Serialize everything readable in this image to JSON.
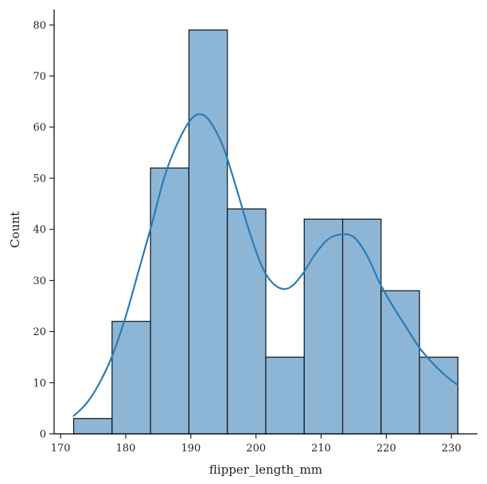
{
  "chart_data": {
    "type": "bar",
    "subtype": "histogram_with_kde",
    "xlabel": "flipper_length_mm",
    "ylabel": "Count",
    "xlim": [
      169,
      234
    ],
    "ylim": [
      0,
      83
    ],
    "xticks": [
      170,
      180,
      190,
      200,
      210,
      220,
      230
    ],
    "yticks": [
      0,
      10,
      20,
      30,
      40,
      50,
      60,
      70,
      80
    ],
    "bins": [
      {
        "x0": 172.0,
        "x1": 177.9,
        "count": 3
      },
      {
        "x0": 177.9,
        "x1": 183.8,
        "count": 22
      },
      {
        "x0": 183.8,
        "x1": 189.7,
        "count": 52
      },
      {
        "x0": 189.7,
        "x1": 195.6,
        "count": 79
      },
      {
        "x0": 195.6,
        "x1": 201.5,
        "count": 44
      },
      {
        "x0": 201.5,
        "x1": 207.4,
        "count": 15
      },
      {
        "x0": 207.4,
        "x1": 213.3,
        "count": 42
      },
      {
        "x0": 213.3,
        "x1": 219.2,
        "count": 42
      },
      {
        "x0": 219.2,
        "x1": 225.1,
        "count": 28
      },
      {
        "x0": 225.1,
        "x1": 231.0,
        "count": 15
      }
    ],
    "kde": {
      "x": [
        172,
        174,
        176,
        178,
        180,
        182,
        184,
        186,
        188,
        190,
        191.5,
        193,
        195,
        197,
        199,
        201,
        203,
        205,
        207,
        209,
        211,
        213,
        215,
        217,
        219,
        221,
        223,
        225,
        227,
        229,
        231
      ],
      "y": [
        3.5,
        6.0,
        10.0,
        15.5,
        23.0,
        32.0,
        41.0,
        50.5,
        57.0,
        61.5,
        62.5,
        61.0,
        56.0,
        48.0,
        39.5,
        32.5,
        29.0,
        28.5,
        31.0,
        35.0,
        38.0,
        39.0,
        38.5,
        35.0,
        29.5,
        25.0,
        21.0,
        17.0,
        14.0,
        11.5,
        9.5
      ]
    },
    "grid": false,
    "legend": "none",
    "colors": {
      "bar_fill": "#8db6d6",
      "bar_edge": "#111111",
      "kde": "#2c7bb6"
    }
  }
}
